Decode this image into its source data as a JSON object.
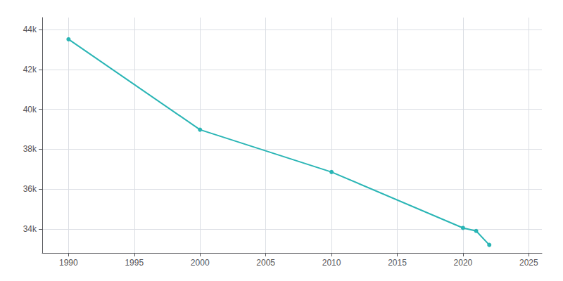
{
  "chart_data": {
    "type": "line",
    "x": [
      1990,
      2000,
      2010,
      2020,
      2021,
      2022
    ],
    "values": [
      43511,
      38978,
      36856,
      34052,
      33901,
      33200
    ],
    "color": "#2ab5b5",
    "marker": "circle",
    "xlim": [
      1988,
      2026
    ],
    "ylim": [
      32800,
      44600
    ],
    "xticks": [
      1990,
      1995,
      2000,
      2005,
      2010,
      2015,
      2020,
      2025
    ],
    "yticks": [
      {
        "value": 34000,
        "label": "34k"
      },
      {
        "value": 36000,
        "label": "36k"
      },
      {
        "value": 38000,
        "label": "38k"
      },
      {
        "value": 40000,
        "label": "40k"
      },
      {
        "value": 42000,
        "label": "42k"
      },
      {
        "value": 44000,
        "label": "44k"
      }
    ],
    "grid": true
  }
}
